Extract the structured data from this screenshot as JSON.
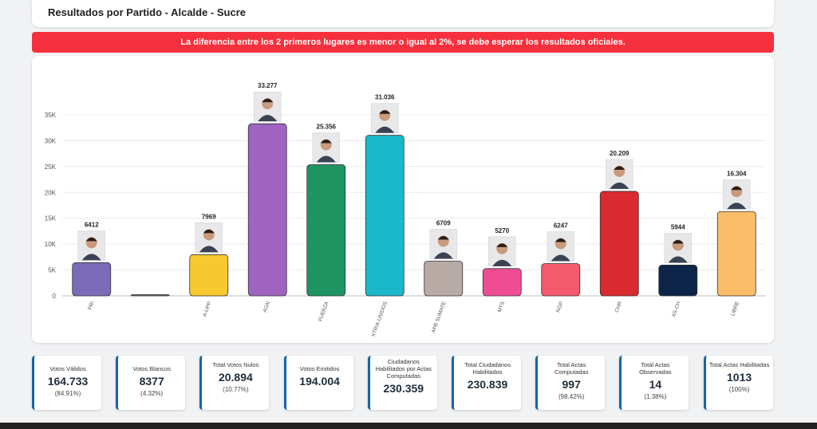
{
  "header": {
    "title": "Resultados por Partido - Alcalde - Sucre"
  },
  "alert": {
    "message": "La diferencia entre los 2 primeros lugares es menor o igual al 2%, se debe esperar los resultados oficiales."
  },
  "chart_data": {
    "type": "bar",
    "categories": [
      "FRI",
      "",
      "A-UPP",
      "AGN",
      "FUERZA",
      "XTRIA-UNIDOS",
      "APB SUMATE",
      "MTS",
      "NGP",
      "CHR",
      "XS-CH",
      "LIBRE"
    ],
    "values": [
      6412,
      0,
      7969,
      33277,
      25356,
      31036,
      6709,
      5270,
      6247,
      20209,
      5944,
      16304
    ],
    "value_labels": [
      "6412",
      "",
      "7969",
      "33.277",
      "25.356",
      "31.036",
      "6709",
      "5270",
      "6247",
      "20.209",
      "5944",
      "16.304"
    ],
    "colors": [
      "#7b6bb8",
      "#666666",
      "#f6c92f",
      "#9f63c0",
      "#1e9463",
      "#1ab8c8",
      "#b8aaa5",
      "#ee4d93",
      "#f45a6d",
      "#da2a2f",
      "#0d2449",
      "#fbbe68"
    ],
    "ylim": [
      0,
      35000
    ],
    "yticks": [
      0,
      5000,
      10000,
      15000,
      20000,
      25000,
      30000,
      35000
    ],
    "ytick_labels": [
      "0",
      "5K",
      "10K",
      "15K",
      "20K",
      "25K",
      "30K",
      "35K"
    ],
    "grid": true,
    "xlabel": "",
    "ylabel": ""
  },
  "stats": [
    {
      "label": "Votos Válidos",
      "value": "164.733",
      "pct": "(84.91%)"
    },
    {
      "label": "Votos Blancos",
      "value": "8377",
      "pct": "(4.32%)"
    },
    {
      "label": "Total Votos Nulos",
      "value": "20.894",
      "pct": "(10.77%)"
    },
    {
      "label": "Votos Emitidos",
      "value": "194.004",
      "pct": ""
    },
    {
      "label": "Ciudadanos Habilitados por Actas Computadas",
      "value": "230.359",
      "pct": ""
    },
    {
      "label": "Total Ciudadanos Habilitados",
      "value": "230.839",
      "pct": ""
    },
    {
      "label": "Total Actas Computadas",
      "value": "997",
      "pct": "(98.42%)"
    },
    {
      "label": "Total Actas Observadas",
      "value": "14",
      "pct": "(1.38%)"
    },
    {
      "label": "Total Actas Habilitadas",
      "value": "1013",
      "pct": "(100%)"
    }
  ]
}
